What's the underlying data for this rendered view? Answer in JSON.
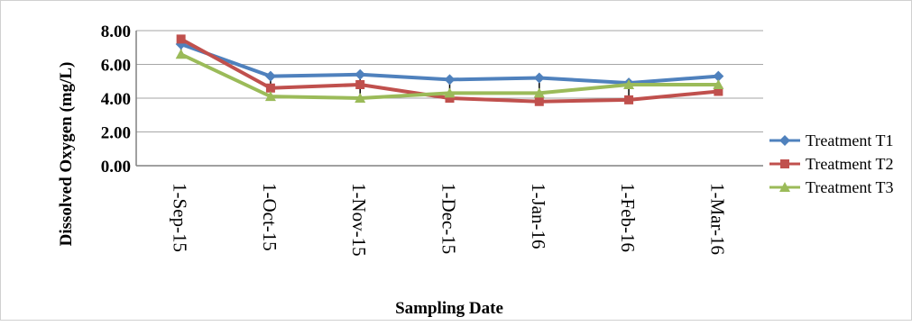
{
  "chart_data": {
    "type": "line",
    "title": "",
    "xlabel": "Sampling Date",
    "ylabel": "Dissolved Oxygen (mg/L)",
    "ylim": [
      0,
      8
    ],
    "yticks": [
      "0.00",
      "2.00",
      "4.00",
      "6.00",
      "8.00"
    ],
    "categories": [
      "1-Sep-15",
      "1-Oct-15",
      "1-Nov-15",
      "1-Dec-15",
      "1-Jan-16",
      "1-Feb-16",
      "1-Mar-16"
    ],
    "grid": true,
    "legend_position": "right",
    "error_bars": true,
    "series": [
      {
        "name": "Treatment T1",
        "color": "#4f81bd",
        "marker": "diamond",
        "values": [
          7.2,
          5.3,
          5.4,
          5.1,
          5.2,
          4.9,
          5.3
        ]
      },
      {
        "name": "Treatment T2",
        "color": "#c0504d",
        "marker": "square",
        "values": [
          7.5,
          4.6,
          4.8,
          4.0,
          3.8,
          3.9,
          4.4
        ]
      },
      {
        "name": "Treatment T3",
        "color": "#9bbb59",
        "marker": "triangle",
        "values": [
          6.6,
          4.1,
          4.0,
          4.3,
          4.3,
          4.8,
          4.8
        ]
      }
    ],
    "error_values": [
      0.5,
      0.6,
      0.6,
      0.5,
      0.5,
      0.6,
      0.5
    ]
  }
}
